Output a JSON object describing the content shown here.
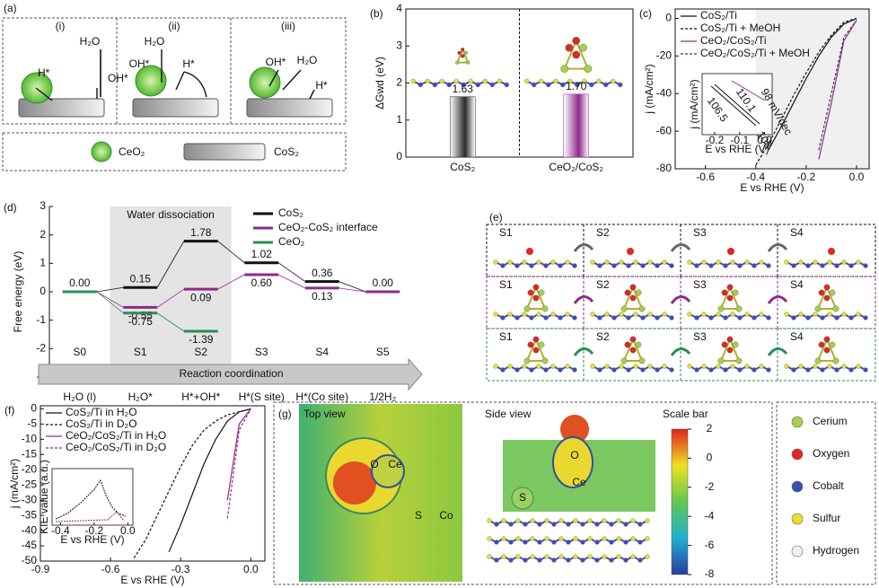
{
  "panels": {
    "a": {
      "label": "(a)",
      "sub": [
        "(i)",
        "(ii)",
        "(iii)"
      ],
      "h2o": "H₂O",
      "h": "H*",
      "oh": "OH*",
      "legend": [
        "CeO₂",
        "CoS₂"
      ]
    },
    "e": {
      "label": "(e)",
      "steps": [
        "S1",
        "S2",
        "S3",
        "S4"
      ]
    },
    "g": {
      "label": "(g)",
      "top": "Top view",
      "side": "Side view",
      "scale": "Scale bar",
      "scale_ticks": [
        2,
        0,
        -2,
        -4,
        -6,
        -8
      ],
      "top_atoms": [
        "O",
        "Ce",
        "S",
        "Co"
      ],
      "side_atoms": [
        "O",
        "Ce",
        "S"
      ]
    },
    "atoms": [
      {
        "name": "Cerium",
        "color": "#a6d04a"
      },
      {
        "name": "Oxygen",
        "color": "#e0281e"
      },
      {
        "name": "Cobalt",
        "color": "#3b4fb0"
      },
      {
        "name": "Sulfur",
        "color": "#e6e02a"
      },
      {
        "name": "Hydrogen",
        "color": "#f2f2f2"
      }
    ]
  },
  "chart_data": [
    {
      "type": "bar",
      "label": "(b)",
      "ylabel": "ΔGwd (eV)",
      "categories": [
        "CoS₂",
        "CeO₂/CoS₂"
      ],
      "values": [
        1.63,
        1.7
      ],
      "value_labels": [
        "1.63",
        "1.70"
      ],
      "colors": [
        "#2a2a2a",
        "#8e2a8e"
      ],
      "ylim": [
        0,
        4
      ],
      "yticks": [
        0,
        1,
        2,
        3,
        4
      ]
    },
    {
      "type": "line",
      "label": "(c)",
      "ylabel": "j (mA/cm²)",
      "xlabel": "E vs RHE (V)",
      "x": [
        -0.4,
        -0.35,
        -0.3,
        -0.25,
        -0.2,
        -0.15,
        -0.1,
        -0.05,
        0
      ],
      "series": [
        {
          "name": "CoS₂/Ti",
          "color": "#111111",
          "dashed": false,
          "values": [
            null,
            -70,
            -58,
            -45,
            -32,
            -20,
            -10,
            -3,
            0
          ]
        },
        {
          "name": "CoS₂/Ti + MeOH",
          "color": "#111111",
          "dashed": true,
          "values": [
            -78,
            -67,
            -54,
            -41,
            -29,
            -18,
            -9,
            -2,
            0
          ]
        },
        {
          "name": "CeO₂/CoS₂/Ti",
          "color": "#8e2a8e",
          "dashed": false,
          "values": [
            null,
            null,
            null,
            null,
            null,
            -75,
            -45,
            -12,
            -1
          ]
        },
        {
          "name": "CeO₂/CoS₂/Ti + MeOH",
          "color": "#5a2a5a",
          "dashed": true,
          "values": [
            null,
            null,
            null,
            null,
            null,
            -70,
            -40,
            -10,
            -1
          ]
        }
      ],
      "xlim": [
        -0.72,
        0.05
      ],
      "xticks": [
        -0.6,
        -0.4,
        -0.2,
        {
          "value": 0,
          "label": "0.0"
        }
      ],
      "ylim": [
        -80,
        5
      ],
      "yticks": [
        0,
        -20,
        -40,
        -60,
        -80
      ],
      "inset": {
        "ylabel": "j (mA/cm²)",
        "xlabel": "E vs RHE (V)",
        "xlim": [
          -0.25,
          0.03
        ],
        "xticks": [
          -0.2,
          -0.1,
          {
            "value": 0,
            "label": "0.0"
          }
        ],
        "slopes": [
          "106.5",
          "110.1",
          "108",
          "98 mV/dec"
        ]
      }
    },
    {
      "type": "energy",
      "label": "(d)",
      "ylabel": "Free energy (eV)",
      "region": "Water dissociation",
      "xlabel": "Reaction coordination",
      "categories": [
        "S0",
        "S1",
        "S2",
        "S3",
        "S4",
        "S5"
      ],
      "states": [
        "H₂O (l)",
        "H₂O*",
        "H*+OH*",
        "H*(S site)",
        "H*(Co site)",
        "1/2H₂"
      ],
      "series": [
        {
          "name": "CoS₂",
          "color": "#111111",
          "values": [
            0,
            0.15,
            1.78,
            1.02,
            0.36,
            0
          ],
          "value_labels": [
            "0.00",
            "0.15",
            "1.78",
            "1.02",
            "0.36",
            "0.00"
          ]
        },
        {
          "name": "CeO₂-CoS₂ interface",
          "color": "#8e2a8e",
          "values": [
            0,
            -0.55,
            0.09,
            0.6,
            0.13,
            0
          ],
          "value_labels": [
            null,
            "-0.55",
            "0.09",
            "0.60",
            "0.13",
            null
          ]
        },
        {
          "name": "CeO₂",
          "color": "#2e8b57",
          "values": [
            0,
            -0.75,
            -1.39,
            null,
            null,
            null
          ],
          "value_labels": [
            null,
            "-0.75",
            "-1.39",
            null,
            null,
            null
          ]
        }
      ],
      "ylim": [
        -3,
        3
      ],
      "yticks": [
        -3,
        -2,
        -1,
        0,
        1,
        2,
        3
      ]
    },
    {
      "type": "line",
      "label": "(f)",
      "ylabel": "j (mA/cm²)",
      "xlabel": "E vs RHE (V)",
      "x": [
        -0.5,
        -0.45,
        -0.4,
        -0.35,
        -0.3,
        -0.25,
        -0.2,
        -0.15,
        -0.1,
        -0.05,
        0
      ],
      "series": [
        {
          "name": "CoS₂/Ti in H₂O",
          "color": "#111111",
          "dashed": false,
          "values": [
            null,
            null,
            null,
            -47,
            -38,
            -28,
            -18,
            -10,
            -4,
            -1,
            0
          ]
        },
        {
          "name": "CoS₂/Ti in D₂O",
          "color": "#111111",
          "dashed": true,
          "values": [
            -49,
            -43,
            -35,
            -27,
            -19,
            -12,
            -7,
            -4,
            -2,
            -1,
            0
          ]
        },
        {
          "name": "CeO₂/CoS₂/Ti in H₂O",
          "color": "#8e2a8e",
          "dashed": false,
          "values": [
            null,
            null,
            null,
            null,
            null,
            null,
            null,
            null,
            -30,
            -5,
            0
          ]
        },
        {
          "name": "CeO₂/CoS₂/Ti in D₂O",
          "color": "#8e2a8e",
          "dashed": true,
          "values": [
            null,
            null,
            null,
            null,
            null,
            null,
            null,
            null,
            -36,
            -7,
            0
          ]
        }
      ],
      "xlim": [
        -0.9,
        0.06
      ],
      "xticks": [
        -0.9,
        -0.6,
        -0.3,
        {
          "value": 0,
          "label": "0.0"
        }
      ],
      "ylim": [
        -50,
        1
      ],
      "yticks": [
        0,
        -5,
        -10,
        -15,
        -20,
        -25,
        -30,
        -35,
        -40,
        -45,
        -50
      ],
      "inset": {
        "ylabel": "KIE value (a.u.)",
        "xlabel": "E vs RHE (V)",
        "xlim": [
          -0.45,
          0.03
        ],
        "xticks": [
          -0.4,
          -0.2,
          {
            "value": 0,
            "label": "0.0"
          }
        ]
      }
    }
  ]
}
